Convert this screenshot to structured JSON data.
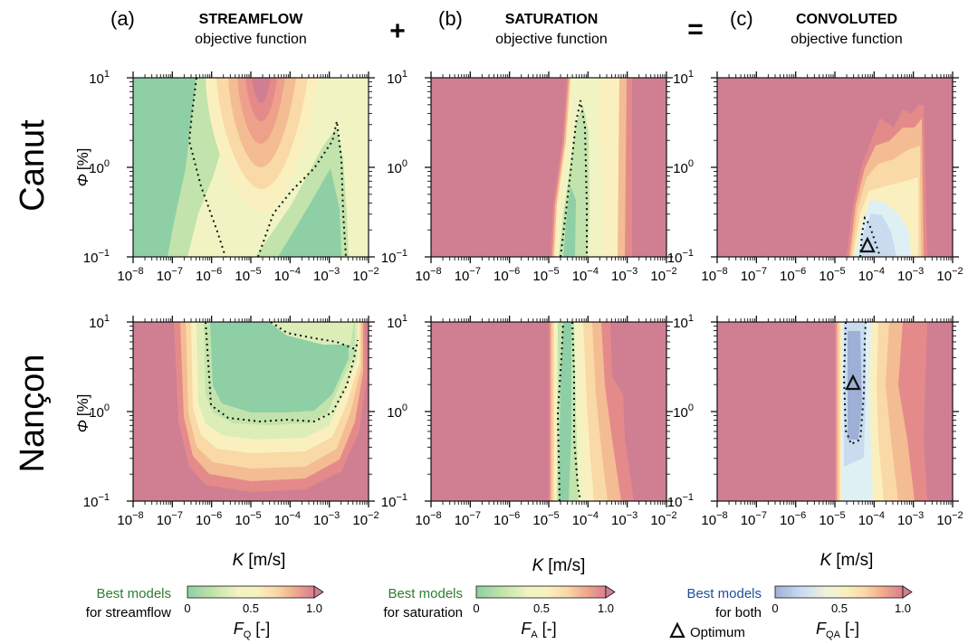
{
  "columns": [
    {
      "letter": "(a)",
      "title": "STREAMFLOW",
      "subtitle": "objective function"
    },
    {
      "letter": "(b)",
      "title": "SATURATION",
      "subtitle": "objective function"
    },
    {
      "letter": "(c)",
      "title": "CONVOLUTED",
      "subtitle": "objective function"
    }
  ],
  "operators": {
    "plus": "+",
    "equals": "="
  },
  "rows": [
    {
      "label": "Canut"
    },
    {
      "label": "Nançon"
    }
  ],
  "axes": {
    "ylabel_symbol": "Φ",
    "ylabel_unit": "[%]",
    "xlabel_symbol": "K",
    "xlabel_unit": "[m/s]",
    "x_ticks": [
      {
        "b": "10",
        "e": "−8"
      },
      {
        "b": "10",
        "e": "−7"
      },
      {
        "b": "10",
        "e": "−6"
      },
      {
        "b": "10",
        "e": "−5"
      },
      {
        "b": "10",
        "e": "−4"
      },
      {
        "b": "10",
        "e": "−3"
      },
      {
        "b": "10",
        "e": "−2"
      }
    ],
    "y_ticks": [
      {
        "b": "10",
        "e": "1"
      },
      {
        "b": "10",
        "e": "0"
      },
      {
        "b": "10",
        "e": "−1"
      }
    ]
  },
  "colorbars": [
    {
      "best_label_1": "Best models",
      "best_label_2": "for streamflow",
      "t0": "0",
      "t1": "0.5",
      "t2": "1.0",
      "label_symbol": "F",
      "label_sub": "Q",
      "label_unit": "[-]",
      "best_color": "#2e7d32"
    },
    {
      "best_label_1": "Best models",
      "best_label_2": "for saturation",
      "t0": "0",
      "t1": "0.5",
      "t2": "1.0",
      "label_symbol": "F",
      "label_sub": "A",
      "label_unit": "[-]",
      "best_color": "#2e7d32"
    },
    {
      "best_label_1": "Best models",
      "best_label_2": "for both",
      "t0": "0",
      "t1": "0.5",
      "t2": "1.0",
      "label_symbol": "F",
      "label_sub": "QA",
      "label_unit": "[-]",
      "best_color": "#1f4e9c",
      "optimum_label": "Optimum"
    }
  ],
  "colors": {
    "background": "#d07f92",
    "green_scale": [
      "#8fcfa6",
      "#a8d9a8",
      "#c2e3ab",
      "#dcedb7",
      "#f1f4c2",
      "#faf0bf",
      "#f9d9a6",
      "#f4bc92",
      "#eea08b",
      "#e58a8a",
      "#d97f8c"
    ],
    "blue_scale": [
      "#9fb0d7",
      "#b2c8e6",
      "#c8dbef",
      "#def0f4",
      "#f1f4c2",
      "#faf0bf",
      "#f9d9a6",
      "#f4bc92",
      "#eea08b",
      "#e58a8a",
      "#d97f8c"
    ]
  },
  "chart_data": [
    {
      "panel": "Canut (a) streamflow",
      "type": "heatmap",
      "x": "K [m/s]",
      "y": "Φ [%]",
      "xlim": [
        1e-08,
        0.01
      ],
      "ylim": [
        0.1,
        10
      ],
      "log_x": true,
      "log_y": true,
      "best_region": "K < 1e-6 and 1e-5 – 2e-3"
    },
    {
      "panel": "Canut (b) saturation",
      "type": "heatmap",
      "xlim": [
        1e-08,
        0.01
      ],
      "ylim": [
        0.1,
        10
      ],
      "log_x": true,
      "log_y": true,
      "best_region": "K ≈ 1e-5 – 1e-4"
    },
    {
      "panel": "Canut (c) convoluted",
      "type": "heatmap",
      "xlim": [
        1e-08,
        0.01
      ],
      "ylim": [
        0.1,
        10
      ],
      "log_x": true,
      "log_y": true,
      "optimum": {
        "K": 4e-05,
        "phi": 0.12
      }
    },
    {
      "panel": "Nançon (a) streamflow",
      "type": "heatmap",
      "xlim": [
        1e-08,
        0.01
      ],
      "ylim": [
        0.1,
        10
      ],
      "log_x": true,
      "log_y": true,
      "best_region": "K 1e-7 – 5e-3, Φ > 0.7"
    },
    {
      "panel": "Nançon (b) saturation",
      "type": "heatmap",
      "xlim": [
        1e-08,
        0.01
      ],
      "ylim": [
        0.1,
        10
      ],
      "log_x": true,
      "log_y": true,
      "best_region": "K ≈ 1e-5"
    },
    {
      "panel": "Nançon (c) convoluted",
      "type": "heatmap",
      "xlim": [
        1e-08,
        0.01
      ],
      "ylim": [
        0.1,
        10
      ],
      "log_x": true,
      "log_y": true,
      "optimum": {
        "K": 1.5e-05,
        "phi": 2
      }
    }
  ]
}
